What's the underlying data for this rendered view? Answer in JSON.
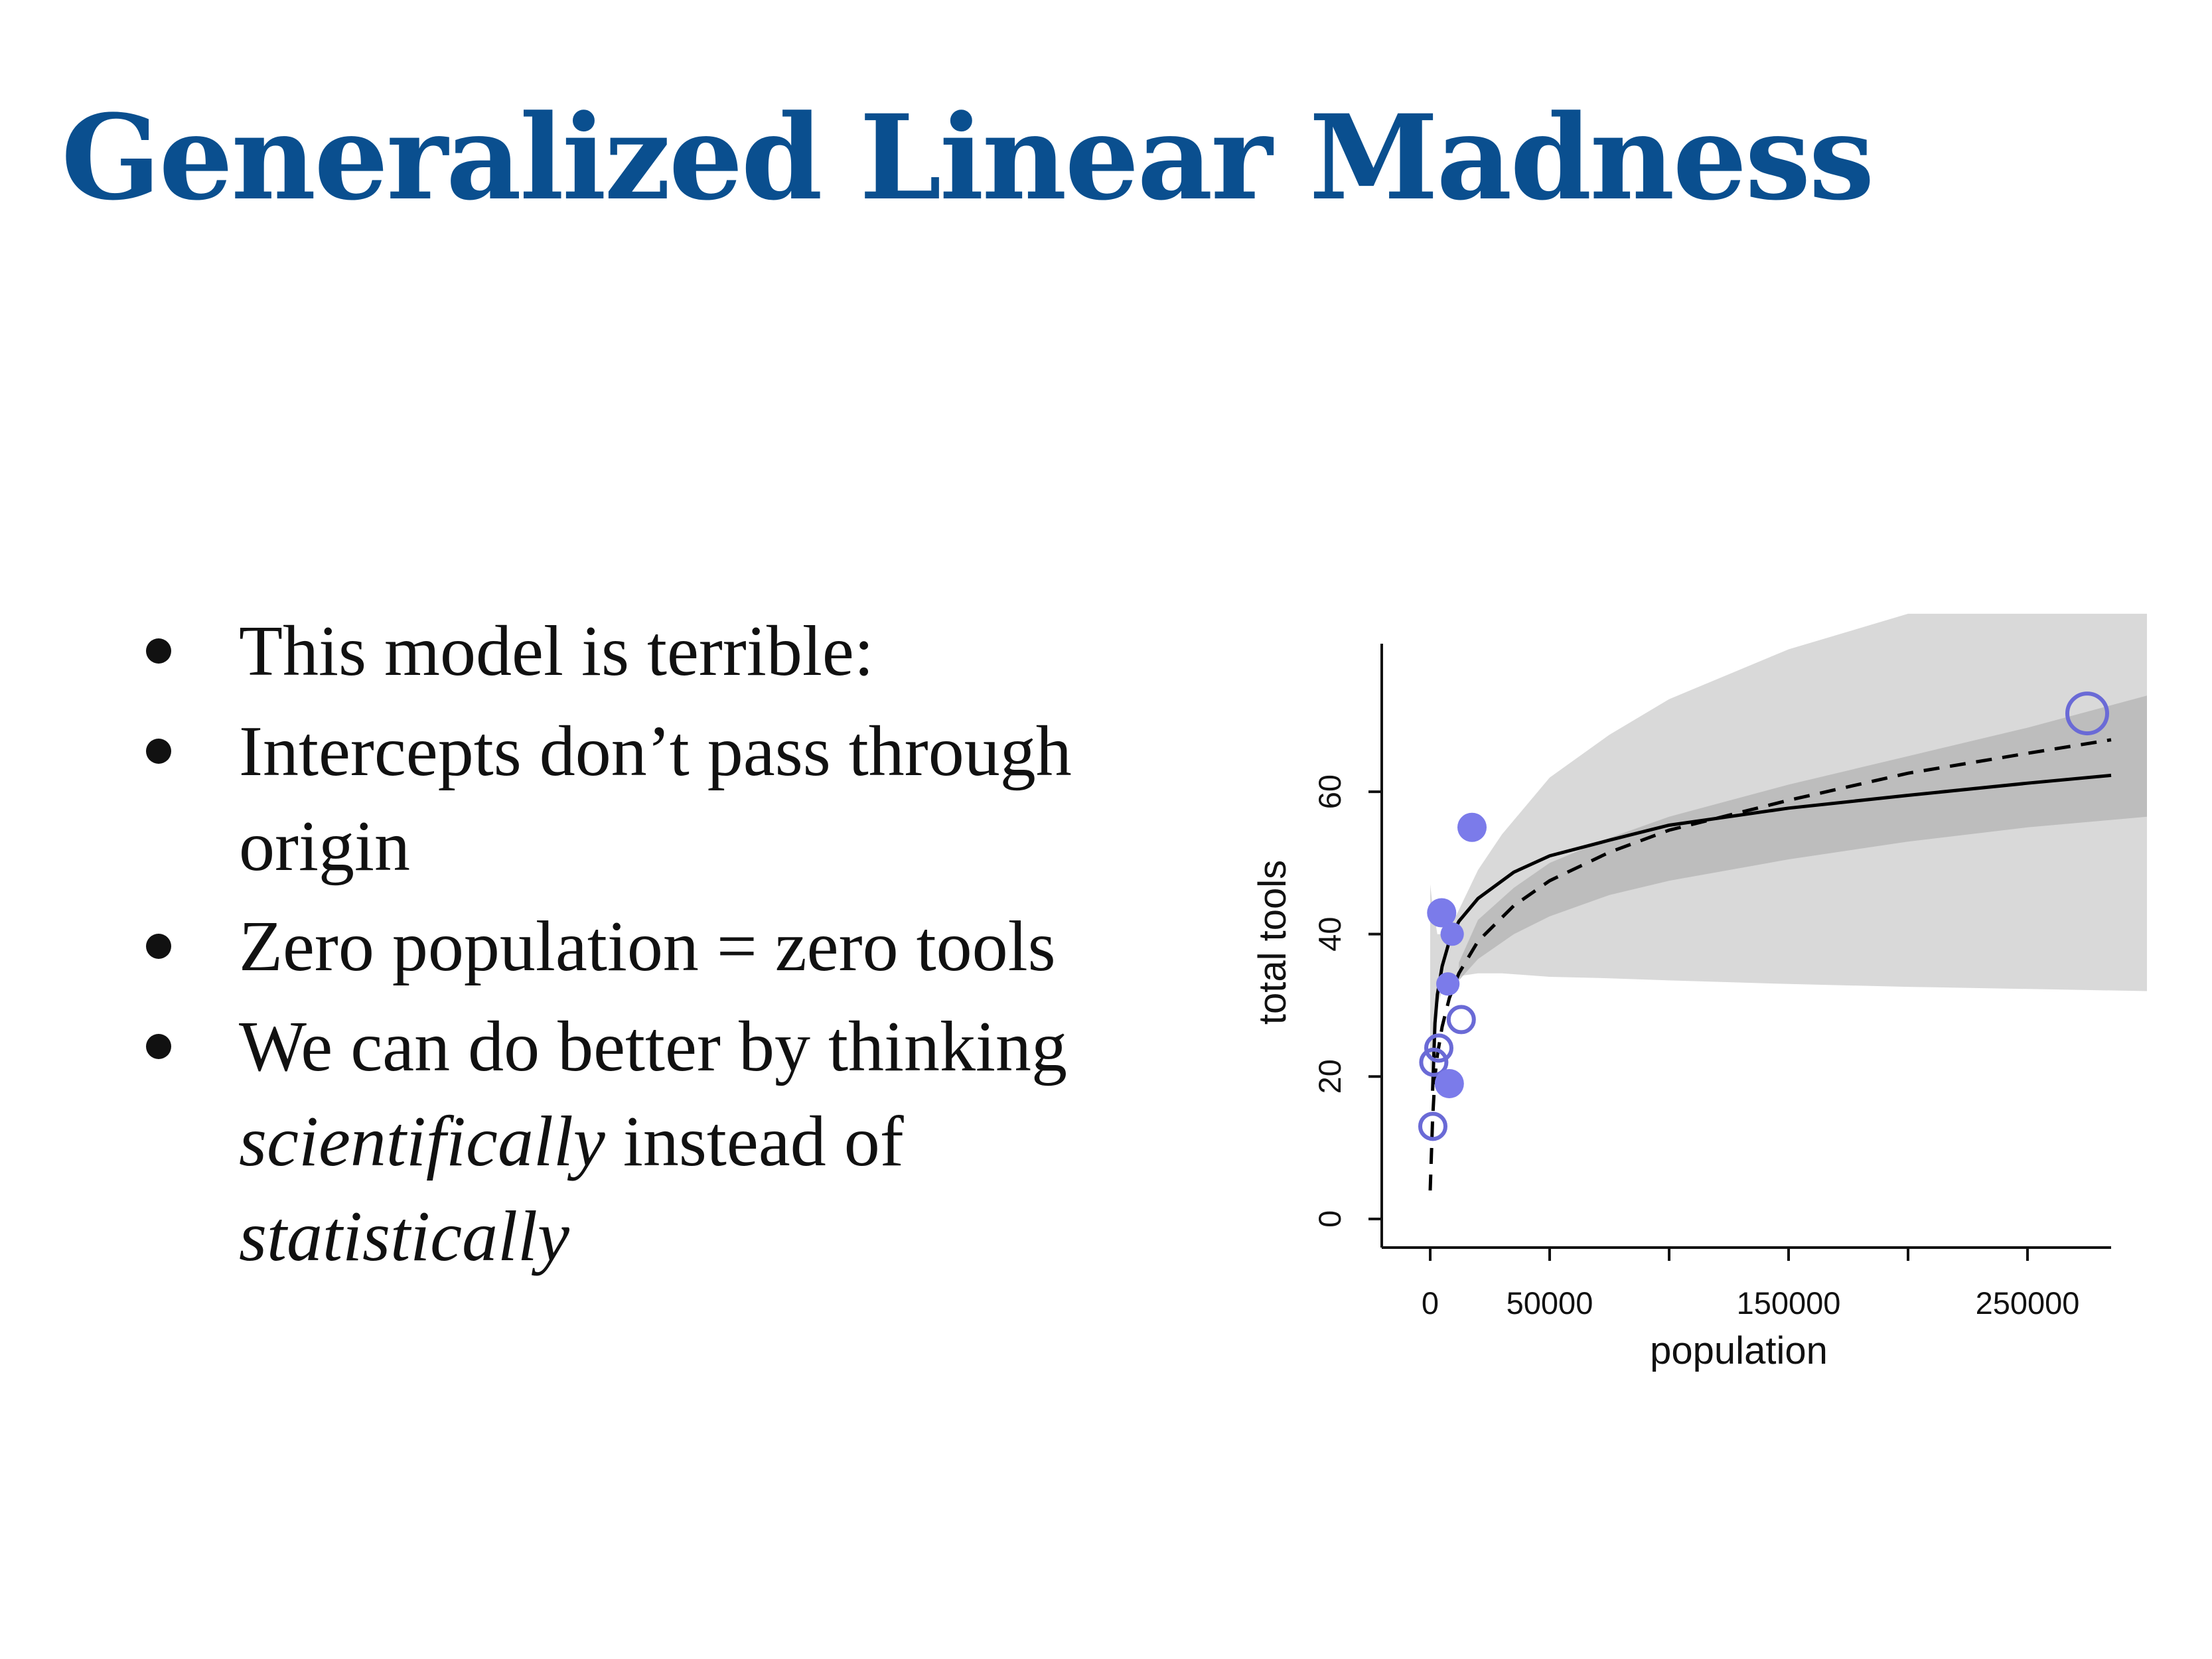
{
  "slide": {
    "title": "Generalized Linear Madness",
    "bullets": [
      {
        "parts": [
          {
            "text": "This model is terrible:",
            "italic": false
          }
        ]
      },
      {
        "parts": [
          {
            "text": "Intercepts don’t pass through origin",
            "italic": false
          }
        ]
      },
      {
        "parts": [
          {
            "text": "Zero population = zero tools",
            "italic": false
          }
        ]
      },
      {
        "parts": [
          {
            "text": "We can do better by thinking ",
            "italic": false
          },
          {
            "text": "scientifically",
            "italic": true
          },
          {
            "text": " instead of ",
            "italic": false
          },
          {
            "text": "statistically",
            "italic": true
          }
        ]
      }
    ]
  },
  "chart_data": {
    "type": "scatter",
    "xlabel": "population",
    "ylabel": "total tools",
    "xticks": [
      0,
      50000,
      100000,
      150000,
      200000,
      250000
    ],
    "xtick_labels": [
      "0",
      "50000",
      "",
      "150000",
      "",
      "250000"
    ],
    "yticks": [
      0,
      20,
      40,
      60
    ],
    "ytick_labels": [
      "0",
      "20",
      "40",
      "60"
    ],
    "xlim": [
      -10000,
      285000
    ],
    "ylim": [
      -3,
      78
    ],
    "grid": false,
    "colors": {
      "outer_band": "#d9d9d9",
      "inner_band": "#b3b3b3",
      "point_fill": "#7b7bea",
      "point_open": "#6a6ad6",
      "line": "#000000"
    },
    "points": [
      {
        "x": 1100,
        "y": 13,
        "filled": false,
        "size": 1
      },
      {
        "x": 1500,
        "y": 22,
        "filled": false,
        "size": 1
      },
      {
        "x": 3600,
        "y": 24,
        "filled": false,
        "size": 1
      },
      {
        "x": 4791,
        "y": 43,
        "filled": true,
        "size": 1
      },
      {
        "x": 7400,
        "y": 33,
        "filled": true,
        "size": 0.8
      },
      {
        "x": 8000,
        "y": 19,
        "filled": true,
        "size": 1
      },
      {
        "x": 9200,
        "y": 40,
        "filled": true,
        "size": 0.8
      },
      {
        "x": 13000,
        "y": 28,
        "filled": false,
        "size": 1
      },
      {
        "x": 17500,
        "y": 55,
        "filled": true,
        "size": 1
      },
      {
        "x": 275000,
        "y": 71,
        "filled": false,
        "size": 1.5
      }
    ],
    "series": [
      {
        "style": "solid",
        "x": [
          1000,
          2000,
          3000,
          5000,
          8000,
          12000,
          20000,
          35000,
          50000,
          75000,
          100000,
          150000,
          200000,
          250000,
          285000
        ],
        "y": [
          18,
          27.5,
          31.5,
          35.5,
          39,
          41.8,
          45,
          48.7,
          51,
          53.2,
          55.3,
          57.7,
          59.5,
          61.2,
          62.3
        ]
      },
      {
        "style": "dashed",
        "x": [
          0,
          1000,
          2000,
          3000,
          5000,
          8000,
          12000,
          20000,
          35000,
          50000,
          75000,
          100000,
          150000,
          200000,
          250000,
          285000
        ],
        "y": [
          4,
          14,
          20,
          23,
          27,
          31,
          34.5,
          39,
          44,
          47.5,
          51.5,
          54.6,
          58.8,
          62.6,
          65.4,
          67.3
        ]
      }
    ],
    "bands": [
      {
        "name": "outer",
        "x": [
          0,
          1000,
          3000,
          6000,
          10000,
          20000,
          30000,
          50000,
          75000,
          100000,
          150000,
          200000,
          250000,
          300000
        ],
        "lower": [
          20,
          24,
          30,
          33,
          34,
          34.5,
          34.5,
          34,
          33.8,
          33.5,
          33,
          32.6,
          32.3,
          32
        ],
        "upper": [
          47,
          44,
          40,
          40,
          42,
          49,
          54,
          62,
          68,
          73,
          80,
          85,
          85,
          85
        ]
      },
      {
        "name": "inner",
        "x": [
          12000,
          20000,
          35000,
          50000,
          75000,
          100000,
          150000,
          200000,
          250000,
          300000
        ],
        "lower": [
          33.5,
          36.5,
          40,
          42.5,
          45.5,
          47.5,
          50.5,
          53,
          55,
          56.5
        ],
        "upper": [
          36,
          42,
          46.5,
          50,
          53.5,
          56.5,
          61,
          65,
          69,
          73.5
        ]
      }
    ]
  }
}
